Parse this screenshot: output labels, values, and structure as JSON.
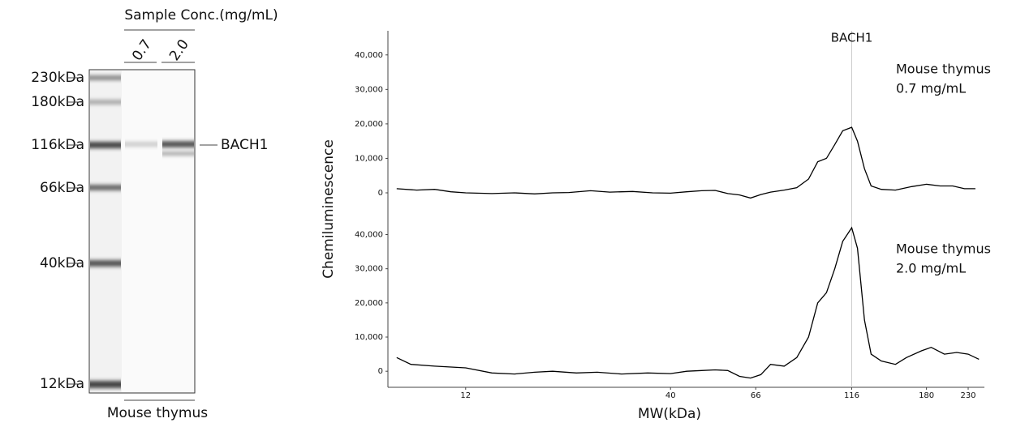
{
  "gel": {
    "header": "Sample Conc.(mg/mL)",
    "lanes": [
      "0.7",
      "2.0"
    ],
    "markers": [
      "230kDa",
      "180kDa",
      "116kDa",
      "66kDa",
      "40kDa",
      "12kDa"
    ],
    "target": "BACH1",
    "sample": "Mouse thymus"
  },
  "chart_data": [
    {
      "type": "line",
      "ylabel": "Chemiluminescence",
      "annotation": {
        "text": "BACH1",
        "x": 116
      },
      "label": [
        "Mouse thymus",
        "0.7 mg/mL"
      ],
      "color": "#000000",
      "xscale": "log",
      "xlim": [
        7.6,
        253
      ],
      "ylim": [
        -4700,
        47000
      ],
      "yticks": [
        0,
        {
          "value": 10000,
          "label": "10,000"
        },
        {
          "value": 20000,
          "label": "20,000"
        },
        {
          "value": 30000,
          "label": "30,000"
        },
        {
          "value": 40000,
          "label": "40,000"
        }
      ],
      "x": [
        8,
        9,
        10,
        11,
        12,
        14,
        16,
        18,
        20,
        22,
        25,
        28,
        32,
        36,
        40,
        44,
        48,
        52,
        56,
        60,
        64,
        68,
        72,
        78,
        84,
        90,
        95,
        100,
        105,
        110,
        116,
        120,
        125,
        130,
        138,
        150,
        165,
        180,
        195,
        210,
        225,
        240
      ],
      "values": [
        1200,
        800,
        1000,
        300,
        0,
        -200,
        0,
        -300,
        0,
        100,
        600,
        200,
        400,
        0,
        -100,
        300,
        600,
        700,
        -200,
        -600,
        -1500,
        -500,
        200,
        800,
        1500,
        4000,
        9000,
        10000,
        14000,
        18000,
        19000,
        15000,
        7000,
        2000,
        1000,
        800,
        1800,
        2500,
        2000,
        2000,
        1200,
        1200
      ]
    },
    {
      "type": "line",
      "xlabel": "MW(kDa)",
      "label": [
        "Mouse thymus",
        "2.0 mg/mL"
      ],
      "color": "#000000",
      "xscale": "log",
      "xlim": [
        7.6,
        253
      ],
      "ylim": [
        -4700,
        47000
      ],
      "xticks": [
        12,
        40,
        66,
        116,
        180,
        230
      ],
      "yticks": [
        0,
        {
          "value": 10000,
          "label": "10,000"
        },
        {
          "value": 20000,
          "label": "20,000"
        },
        {
          "value": 30000,
          "label": "30,000"
        },
        {
          "value": 40000,
          "label": "40,000"
        }
      ],
      "x": [
        8,
        8.7,
        10,
        12,
        14,
        16,
        18,
        20,
        23,
        26,
        30,
        35,
        40,
        44,
        48,
        52,
        56,
        60,
        64,
        68,
        72,
        78,
        84,
        90,
        95,
        100,
        105,
        110,
        116,
        120,
        125,
        130,
        138,
        150,
        160,
        175,
        185,
        200,
        215,
        230,
        245
      ],
      "values": [
        4000,
        2000,
        1500,
        1000,
        -500,
        -800,
        -300,
        0,
        -500,
        -300,
        -800,
        -500,
        -700,
        0,
        200,
        400,
        200,
        -1500,
        -2000,
        -1000,
        2000,
        1500,
        4000,
        10000,
        20000,
        23000,
        30000,
        38000,
        42000,
        36000,
        15000,
        5000,
        3000,
        2000,
        4000,
        6000,
        7000,
        5000,
        5500,
        5000,
        3500
      ]
    }
  ]
}
